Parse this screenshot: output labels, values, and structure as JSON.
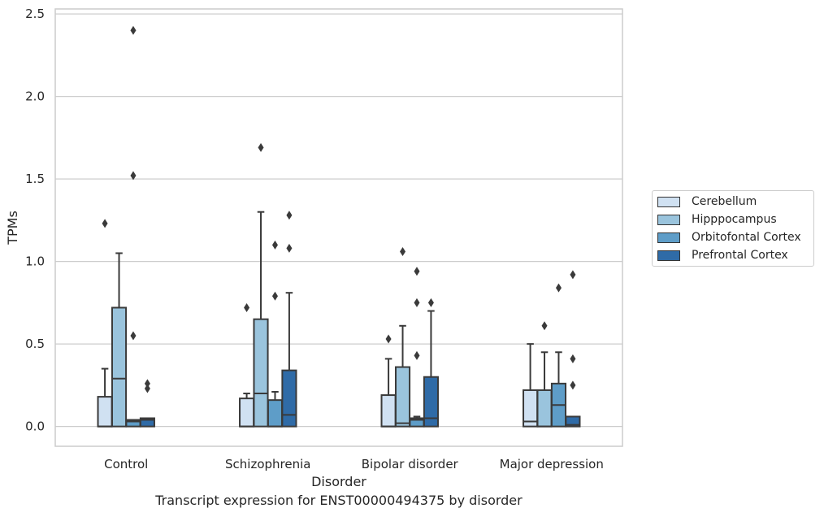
{
  "chart_data": {
    "type": "boxplot",
    "xlabel": "Disorder",
    "ylabel": "TPMs",
    "caption": "Transcript expression for ENST00000494375 by disorder",
    "ylim": [
      -0.12,
      2.53
    ],
    "yticks": [
      0.0,
      0.5,
      1.0,
      1.5,
      2.0,
      2.5
    ],
    "ytick_labels": [
      "0.0",
      "0.5",
      "1.0",
      "1.5",
      "2.0",
      "2.5"
    ],
    "grid": "horizontal",
    "legend_position": "right",
    "categories": [
      "Control",
      "Schizophrenia",
      "Bipolar disorder",
      "Major depression"
    ],
    "series": [
      {
        "name": "Cerebellum",
        "color": "#d0e1f2",
        "boxes": [
          {
            "whislo": 0.0,
            "q1": 0.0,
            "med": 0.0,
            "q3": 0.18,
            "whishi": 0.35,
            "fliers": [
              1.23
            ]
          },
          {
            "whislo": 0.0,
            "q1": 0.0,
            "med": 0.0,
            "q3": 0.17,
            "whishi": 0.2,
            "fliers": [
              0.72
            ]
          },
          {
            "whislo": 0.0,
            "q1": 0.0,
            "med": 0.0,
            "q3": 0.19,
            "whishi": 0.41,
            "fliers": [
              0.53
            ]
          },
          {
            "whislo": 0.0,
            "q1": 0.0,
            "med": 0.03,
            "q3": 0.22,
            "whishi": 0.5,
            "fliers": []
          }
        ]
      },
      {
        "name": "Hipppocampus",
        "color": "#9ac4dd",
        "boxes": [
          {
            "whislo": 0.0,
            "q1": 0.0,
            "med": 0.29,
            "q3": 0.72,
            "whishi": 1.05,
            "fliers": []
          },
          {
            "whislo": 0.0,
            "q1": 0.0,
            "med": 0.2,
            "q3": 0.65,
            "whishi": 1.3,
            "fliers": [
              1.69
            ]
          },
          {
            "whislo": 0.0,
            "q1": 0.0,
            "med": 0.02,
            "q3": 0.36,
            "whishi": 0.61,
            "fliers": [
              1.06
            ]
          },
          {
            "whislo": 0.0,
            "q1": 0.0,
            "med": 0.0,
            "q3": 0.22,
            "whishi": 0.45,
            "fliers": [
              0.61
            ]
          }
        ]
      },
      {
        "name": "Orbitofontal Cortex",
        "color": "#5e9dc8",
        "boxes": [
          {
            "whislo": 0.0,
            "q1": 0.0,
            "med": 0.03,
            "q3": 0.04,
            "whishi": 0.04,
            "fliers": [
              0.55,
              1.52,
              2.4
            ]
          },
          {
            "whislo": 0.0,
            "q1": 0.0,
            "med": 0.0,
            "q3": 0.16,
            "whishi": 0.21,
            "fliers": [
              0.79,
              1.1
            ]
          },
          {
            "whislo": 0.0,
            "q1": 0.0,
            "med": 0.04,
            "q3": 0.05,
            "whishi": 0.06,
            "fliers": [
              0.43,
              0.75,
              0.94
            ]
          },
          {
            "whislo": 0.0,
            "q1": 0.0,
            "med": 0.13,
            "q3": 0.26,
            "whishi": 0.45,
            "fliers": [
              0.84
            ]
          }
        ]
      },
      {
        "name": "Prefrontal Cortex",
        "color": "#2f6ba7",
        "boxes": [
          {
            "whislo": 0.0,
            "q1": 0.0,
            "med": 0.04,
            "q3": 0.05,
            "whishi": 0.05,
            "fliers": [
              0.23,
              0.26
            ]
          },
          {
            "whislo": 0.0,
            "q1": 0.0,
            "med": 0.07,
            "q3": 0.34,
            "whishi": 0.81,
            "fliers": [
              1.08,
              1.28
            ]
          },
          {
            "whislo": 0.0,
            "q1": 0.0,
            "med": 0.05,
            "q3": 0.3,
            "whishi": 0.7,
            "fliers": [
              0.75
            ]
          },
          {
            "whislo": 0.0,
            "q1": 0.0,
            "med": 0.01,
            "q3": 0.06,
            "whishi": 0.06,
            "fliers": [
              0.25,
              0.41,
              0.92
            ]
          }
        ]
      }
    ]
  }
}
